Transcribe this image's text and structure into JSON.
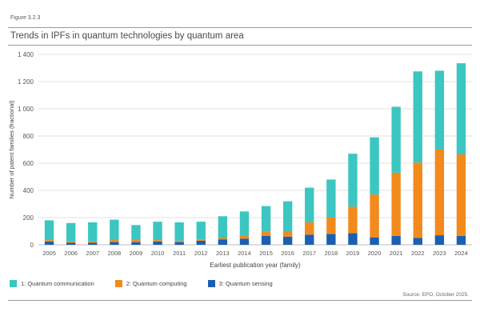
{
  "figure_label": "Figure 3.2.3",
  "title": "Trends in IPFs in quantum technologies by quantum area",
  "source": "Source: EPO, October 2025.",
  "colors": {
    "communication": "#3cc6c1",
    "computing": "#f28a1c",
    "sensing": "#1b5fb3",
    "grid": "#e2e2e2",
    "axis": "#bdbdbd"
  },
  "chart_data": {
    "type": "bar",
    "stacked": true,
    "xlabel": "Earliest publication year (family)",
    "ylabel": "Number of patent families (fractional)",
    "ylim": [
      0,
      1400
    ],
    "yticks": [
      0,
      200,
      400,
      600,
      800,
      1000,
      1200,
      1400
    ],
    "ytick_labels": [
      "0",
      "200",
      "400",
      "600",
      "800",
      "1 000",
      "1 200",
      "1 400"
    ],
    "grid": true,
    "legend_position": "bottom-left",
    "categories": [
      "2005",
      "2006",
      "2007",
      "2008",
      "2009",
      "2010",
      "2011",
      "2012",
      "2013",
      "2014",
      "2015",
      "2016",
      "2017",
      "2018",
      "2019",
      "2020",
      "2021",
      "2022",
      "2023",
      "2024"
    ],
    "series": [
      {
        "name": "3: Quantum sensing",
        "color_key": "sensing",
        "values": [
          25,
          15,
          15,
          20,
          20,
          25,
          20,
          30,
          40,
          45,
          65,
          60,
          75,
          80,
          85,
          55,
          65,
          50,
          70,
          65
        ]
      },
      {
        "name": "2: Quantum computing",
        "color_key": "computing",
        "values": [
          10,
          10,
          10,
          15,
          15,
          10,
          10,
          10,
          10,
          20,
          30,
          40,
          90,
          120,
          195,
          315,
          465,
          555,
          630,
          600
        ]
      },
      {
        "name": "1: Quantum communication",
        "color_key": "communication",
        "values": [
          145,
          135,
          140,
          150,
          110,
          135,
          135,
          130,
          160,
          180,
          190,
          220,
          255,
          280,
          390,
          420,
          485,
          670,
          580,
          670
        ]
      }
    ]
  },
  "legend": [
    {
      "label": "1: Quantum communication",
      "color_key": "communication"
    },
    {
      "label": "2: Quantum computing",
      "color_key": "computing"
    },
    {
      "label": "3: Quantum sensing",
      "color_key": "sensing"
    }
  ]
}
